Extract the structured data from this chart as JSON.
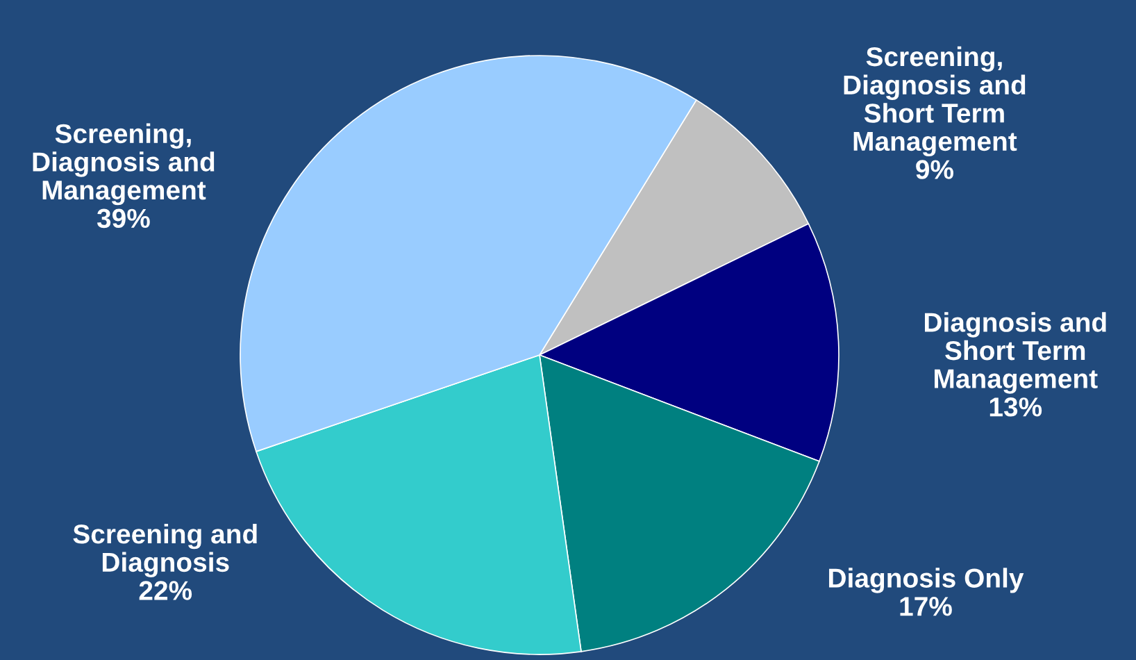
{
  "chart_data": {
    "type": "pie",
    "categories": [
      "Screening,\nDiagnosis and\nShort Term\nManagement",
      "Diagnosis and\nShort Term\nManagement",
      "Diagnosis Only",
      "Screening and\nDiagnosis",
      "Screening,\nDiagnosis and\nManagement"
    ],
    "values": [
      9,
      13,
      17,
      22,
      39
    ],
    "colors": [
      "#c0c0c0",
      "#000080",
      "#008080",
      "#33cccc",
      "#99ccff"
    ],
    "value_labels": [
      "9%",
      "13%",
      "17%",
      "22%",
      "39%"
    ]
  }
}
